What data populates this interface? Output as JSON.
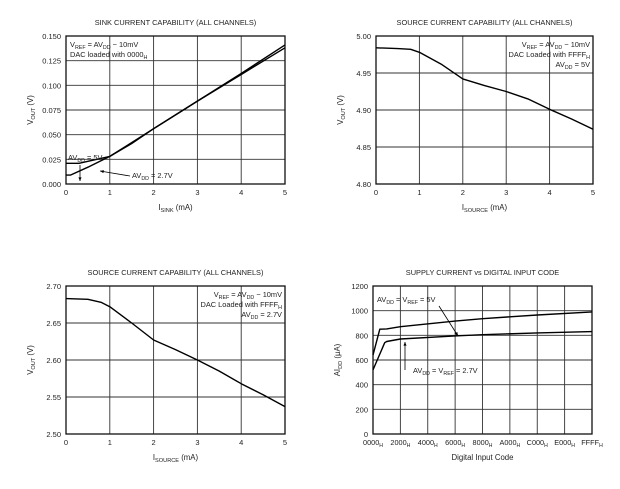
{
  "chart_data": [
    {
      "type": "line",
      "title": "SINK CURRENT CAPABILITY (ALL CHANNELS)",
      "xlabel": [
        "I",
        "SINK",
        " (mA)"
      ],
      "ylabel": [
        "V",
        "OUT",
        " (V)"
      ],
      "xlim": [
        0,
        5
      ],
      "ylim": [
        0,
        0.15
      ],
      "xticks": [
        "0",
        "1",
        "2",
        "3",
        "4",
        "5"
      ],
      "yticks": [
        "0.000",
        "0.025",
        "0.050",
        "0.075",
        "0.100",
        "0.125",
        "0.150"
      ],
      "grid": true,
      "annotations": [
        [
          "V",
          "REF",
          " = AV",
          "DD",
          " − 10mV"
        ],
        [
          "DAC loaded with 0000",
          "H",
          ""
        ],
        [
          "AV",
          "DD",
          " = 5V"
        ],
        [
          "AV",
          "DD",
          " = 2.7V"
        ]
      ],
      "series": [
        {
          "name": "AVDD = 5V",
          "x": [
            0,
            0.3,
            0.5,
            1,
            1.5,
            2,
            3,
            4,
            5
          ],
          "y": [
            0.021,
            0.021,
            0.023,
            0.028,
            0.041,
            0.056,
            0.084,
            0.112,
            0.141
          ]
        },
        {
          "name": "AVDD = 2.7V",
          "x": [
            0,
            0.1,
            0.5,
            1,
            1.5,
            2,
            3,
            4,
            5
          ],
          "y": [
            0.009,
            0.009,
            0.017,
            0.028,
            0.042,
            0.056,
            0.084,
            0.111,
            0.138
          ]
        }
      ]
    },
    {
      "type": "line",
      "title": "SOURCE CURRENT CAPABILITY (ALL CHANNELS)",
      "xlabel": [
        "I",
        "SOURCE",
        " (mA)"
      ],
      "ylabel": [
        "V",
        "OUT",
        " (V)"
      ],
      "xlim": [
        0,
        5
      ],
      "ylim": [
        4.8,
        5.0
      ],
      "xticks": [
        "0",
        "1",
        "2",
        "3",
        "4",
        "5"
      ],
      "yticks": [
        "4.80",
        "4.85",
        "4.90",
        "4.95",
        "5.00"
      ],
      "grid": true,
      "annotations": [
        [
          "V",
          "REF",
          " = AV",
          "DD",
          " − 10mV"
        ],
        [
          "DAC Loaded with FFFF",
          "H",
          ""
        ],
        [
          "AV",
          "DD",
          " = 5V"
        ]
      ],
      "series": [
        {
          "x": [
            0,
            0.5,
            0.8,
            1,
            1.5,
            2,
            2.5,
            3,
            3.5,
            4,
            4.5,
            5
          ],
          "y": [
            4.984,
            4.983,
            4.982,
            4.978,
            4.962,
            4.942,
            4.933,
            4.925,
            4.915,
            4.901,
            4.888,
            4.874
          ]
        }
      ]
    },
    {
      "type": "line",
      "title": "SOURCE CURRENT CAPABILITY (ALL CHANNELS)",
      "xlabel": [
        "I",
        "SOURCE",
        " (mA)"
      ],
      "ylabel": [
        "V",
        "OUT",
        " (V)"
      ],
      "xlim": [
        0,
        5
      ],
      "ylim": [
        2.5,
        2.7
      ],
      "xticks": [
        "0",
        "1",
        "2",
        "3",
        "4",
        "5"
      ],
      "yticks": [
        "2.50",
        "2.55",
        "2.60",
        "2.65",
        "2.70"
      ],
      "grid": true,
      "annotations": [
        [
          "V",
          "REF",
          " = AV",
          "DD",
          " − 10mV"
        ],
        [
          "DAC Loaded with FFFF",
          "H",
          ""
        ],
        [
          "AV",
          "DD",
          " = 2.7V"
        ]
      ],
      "series": [
        {
          "x": [
            0,
            0.5,
            0.8,
            1,
            1.5,
            2,
            2.5,
            3,
            3.5,
            4,
            4.5,
            5
          ],
          "y": [
            2.683,
            2.682,
            2.678,
            2.672,
            2.65,
            2.627,
            2.614,
            2.6,
            2.585,
            2.568,
            2.553,
            2.537
          ]
        }
      ]
    },
    {
      "type": "line",
      "title": "SUPPLY CURRENT vs DIGITAL INPUT CODE",
      "xlabel": [
        "Digital Input Code",
        "",
        ""
      ],
      "ylabel": [
        "AI",
        "DD",
        " (μA)"
      ],
      "xlim": [
        0,
        65535
      ],
      "ylim": [
        0,
        1200
      ],
      "xticks": [
        "0000H",
        "2000H",
        "4000H",
        "6000H",
        "8000H",
        "A000H",
        "C000H",
        "E000H",
        "FFFFH"
      ],
      "yticks": [
        "0",
        "200",
        "400",
        "600",
        "800",
        "1000",
        "1200"
      ],
      "grid": true,
      "annotations": [
        [
          "AV",
          "DD",
          " = V",
          "REF",
          " = 5V"
        ],
        [
          "AV",
          "DD",
          " = V",
          "REF",
          " = 2.7V"
        ]
      ],
      "series": [
        {
          "name": "AVDD = VREF = 5V",
          "x": [
            0,
            2048,
            4096,
            8192,
            24576,
            32768,
            40960,
            49152,
            65535
          ],
          "y": [
            640,
            850,
            852,
            870,
            915,
            935,
            950,
            965,
            990
          ]
        },
        {
          "name": "AVDD = VREF = 2.7V",
          "x": [
            0,
            3500,
            4096,
            8192,
            24576,
            32768,
            49152,
            65535
          ],
          "y": [
            520,
            740,
            750,
            770,
            795,
            805,
            820,
            830
          ]
        }
      ]
    }
  ]
}
